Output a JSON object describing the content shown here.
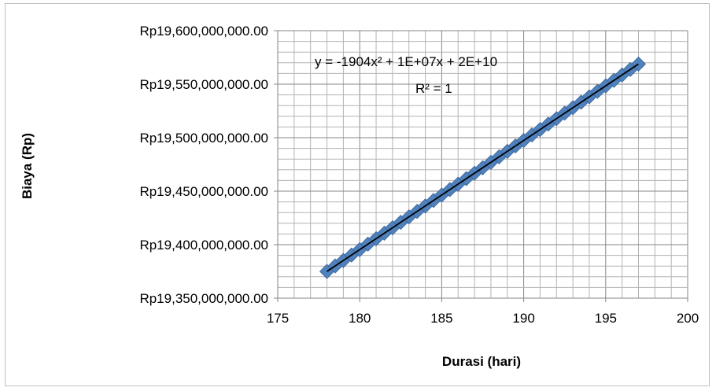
{
  "chart_data": {
    "type": "scatter",
    "xlabel": "Durasi (hari)",
    "ylabel": "Biaya (Rp)",
    "xlim": [
      175,
      200
    ],
    "ylim": [
      19350000000,
      19600000000
    ],
    "x_ticks": [
      "175",
      "180",
      "185",
      "190",
      "195",
      "200"
    ],
    "y_ticks": [
      "Rp19,350,000,000.00",
      "Rp19,400,000,000.00",
      "Rp19,450,000,000.00",
      "Rp19,500,000,000.00",
      "Rp19,550,000,000.00",
      "Rp19,600,000,000.00"
    ],
    "grid": true,
    "marker_color": "#4f81bd",
    "trendline_color": "#000000",
    "x": [
      178,
      178.5,
      179,
      179.5,
      180,
      180.5,
      181,
      181.5,
      182,
      182.5,
      183,
      183.5,
      184,
      184.5,
      185,
      185.5,
      186,
      186.5,
      187,
      187.5,
      188,
      188.5,
      189,
      189.5,
      190,
      190.5,
      191,
      191.5,
      192,
      192.5,
      193,
      193.5,
      194,
      194.5,
      195,
      195.5,
      196,
      196.5,
      197
    ],
    "y": [
      19375000000,
      19380100000,
      19385200000,
      19390300000,
      19395400000,
      19400500000,
      19405600000,
      19410700000,
      19415800000,
      19420900000,
      19426000000,
      19431100000,
      19436200000,
      19441300000,
      19446400000,
      19451500000,
      19456600000,
      19461700000,
      19466800000,
      19471900000,
      19477000000,
      19482100000,
      19487200000,
      19492300000,
      19497400000,
      19502500000,
      19507600000,
      19512700000,
      19517800000,
      19522900000,
      19528000000,
      19533100000,
      19538200000,
      19543300000,
      19548400000,
      19553500000,
      19558600000,
      19563700000,
      19568800000
    ],
    "trendline": {
      "equation": "y = -1904x² + 1E+07x + 2E+10",
      "r_squared": "R² = 1"
    }
  }
}
